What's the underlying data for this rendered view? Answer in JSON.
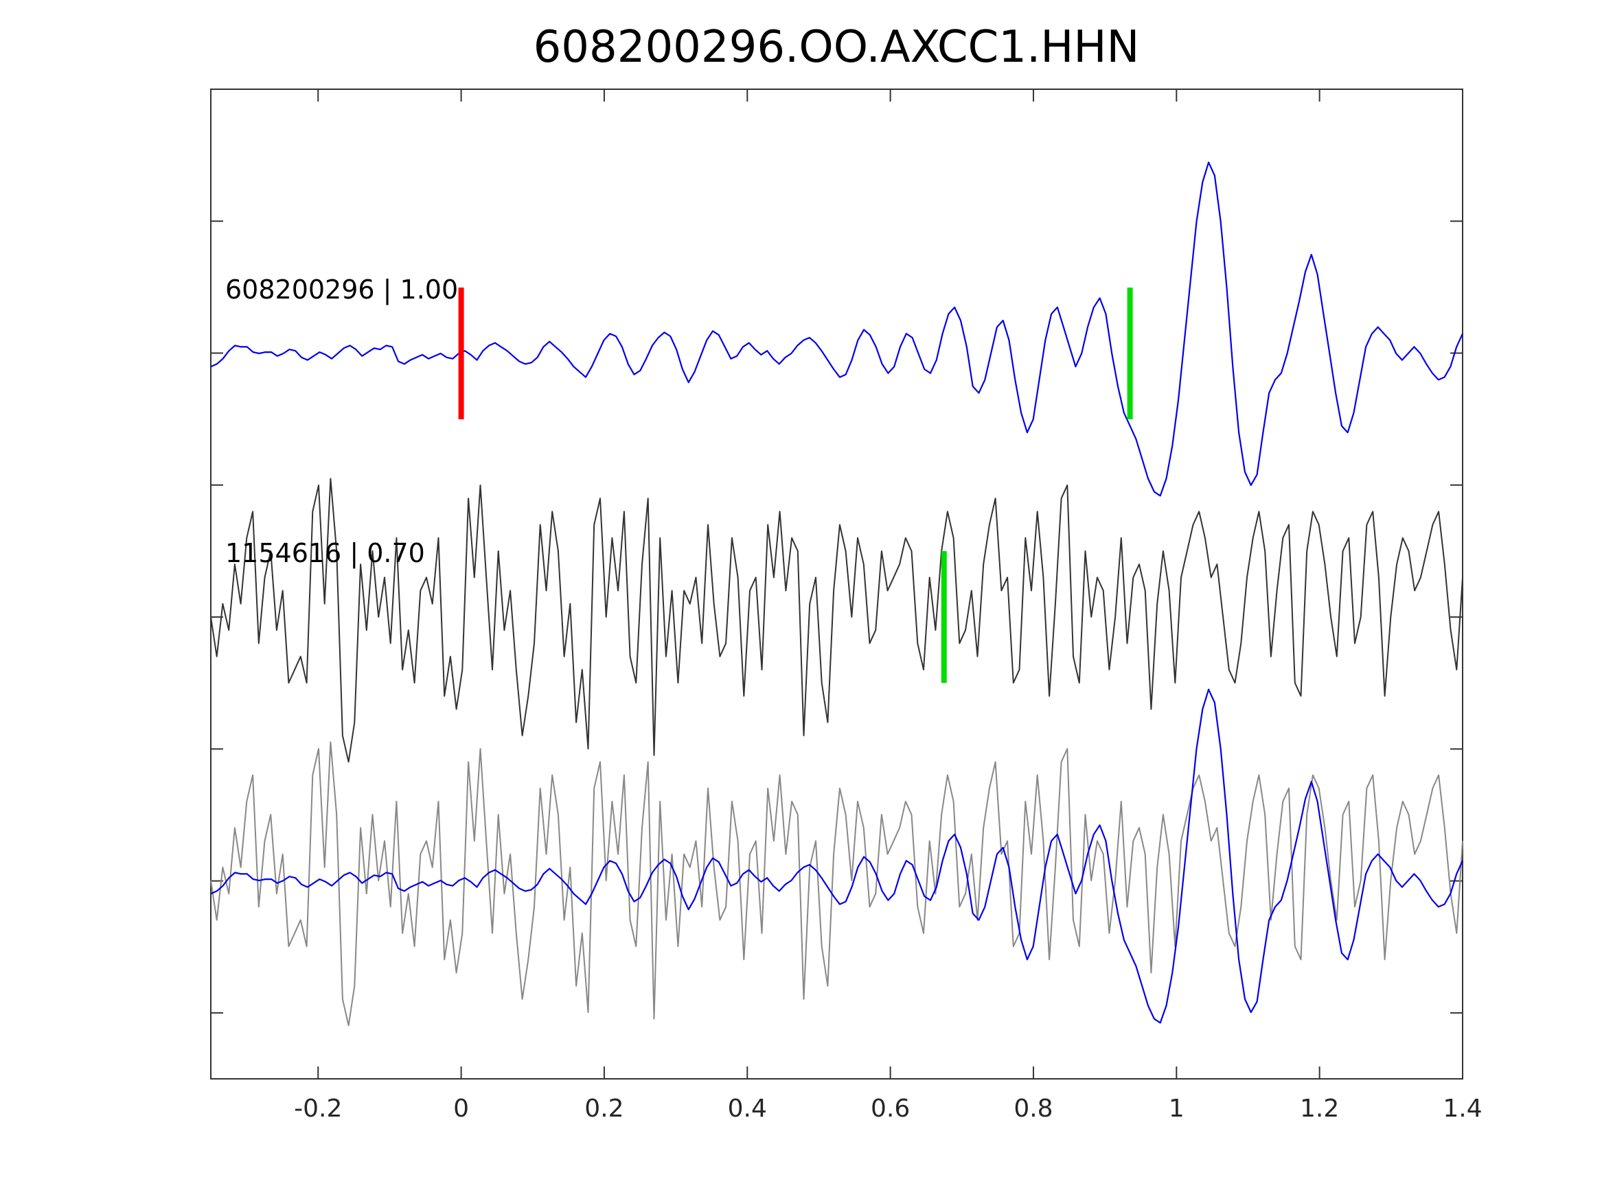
{
  "chart_data": {
    "type": "line",
    "title": "608200296.OO.AXCC1.HHN",
    "xlabel": "",
    "ylabel": "",
    "xlim": [
      -0.35,
      1.4
    ],
    "x_ticks": [
      -0.2,
      0,
      0.2,
      0.4,
      0.6,
      0.8,
      1,
      1.2,
      1.4
    ],
    "x_tick_labels": [
      "-0.2",
      "0",
      "0.2",
      "0.4",
      "0.6",
      "0.8",
      "1",
      "1.2",
      "1.4"
    ],
    "y_ticks_count": 7,
    "y_tick_labels_shown": false,
    "grid": false,
    "legend": "none",
    "traces": [
      {
        "label": "608200296 | 1.00",
        "color": "#0000ee",
        "offset": 2,
        "samples": [
          -0.1,
          -0.08,
          -0.04,
          0.02,
          0.06,
          0.05,
          0.05,
          0.01,
          0.0,
          0.01,
          0.01,
          -0.02,
          0.0,
          0.03,
          0.02,
          -0.03,
          -0.05,
          -0.02,
          0.01,
          -0.01,
          -0.04,
          0.0,
          0.04,
          0.06,
          0.03,
          -0.02,
          0.01,
          0.04,
          0.03,
          0.06,
          0.05,
          -0.06,
          -0.08,
          -0.05,
          -0.03,
          -0.01,
          -0.04,
          -0.02,
          0.0,
          -0.03,
          -0.04,
          0.0,
          0.02,
          -0.01,
          -0.05,
          0.02,
          0.06,
          0.08,
          0.05,
          0.02,
          -0.02,
          -0.06,
          -0.08,
          -0.07,
          -0.03,
          0.05,
          0.09,
          0.05,
          0.01,
          -0.04,
          -0.1,
          -0.14,
          -0.18,
          -0.1,
          0.0,
          0.1,
          0.15,
          0.13,
          0.05,
          -0.08,
          -0.16,
          -0.13,
          -0.04,
          0.06,
          0.12,
          0.16,
          0.13,
          0.03,
          -0.12,
          -0.22,
          -0.14,
          -0.02,
          0.1,
          0.17,
          0.14,
          0.05,
          -0.04,
          -0.02,
          0.05,
          0.08,
          0.03,
          -0.01,
          0.02,
          -0.04,
          -0.08,
          -0.03,
          0.0,
          0.06,
          0.1,
          0.12,
          0.08,
          0.02,
          -0.05,
          -0.12,
          -0.18,
          -0.16,
          -0.05,
          0.1,
          0.18,
          0.14,
          0.05,
          -0.08,
          -0.15,
          -0.1,
          0.05,
          0.15,
          0.12,
          0.0,
          -0.12,
          -0.15,
          -0.05,
          0.15,
          0.3,
          0.35,
          0.25,
          0.05,
          -0.25,
          -0.3,
          -0.2,
          0.0,
          0.2,
          0.25,
          0.1,
          -0.2,
          -0.45,
          -0.6,
          -0.5,
          -0.2,
          0.1,
          0.3,
          0.35,
          0.2,
          0.05,
          -0.1,
          0.0,
          0.2,
          0.35,
          0.42,
          0.3,
          0.0,
          -0.25,
          -0.45,
          -0.55,
          -0.65,
          -0.8,
          -0.95,
          -1.05,
          -1.08,
          -0.95,
          -0.7,
          -0.35,
          0.1,
          0.55,
          1.0,
          1.3,
          1.45,
          1.35,
          1.0,
          0.5,
          -0.1,
          -0.6,
          -0.9,
          -1.0,
          -0.92,
          -0.6,
          -0.3,
          -0.2,
          -0.15,
          0.0,
          0.2,
          0.4,
          0.62,
          0.75,
          0.6,
          0.3,
          0.0,
          -0.3,
          -0.55,
          -0.6,
          -0.45,
          -0.2,
          0.05,
          0.15,
          0.2,
          0.15,
          0.1,
          0.0,
          -0.05,
          0.0,
          0.05,
          0.0,
          -0.08,
          -0.15,
          -0.2,
          -0.18,
          -0.1,
          0.05,
          0.15
        ]
      },
      {
        "label": "1154616 | 0.70",
        "color": "#333333",
        "offset": 0,
        "samples": [
          0.0,
          -0.3,
          0.1,
          -0.1,
          0.4,
          0.1,
          0.6,
          0.8,
          -0.2,
          0.3,
          0.5,
          -0.1,
          0.2,
          -0.5,
          -0.4,
          -0.3,
          -0.5,
          0.8,
          1.0,
          0.1,
          1.05,
          0.5,
          -0.9,
          -1.1,
          -0.8,
          0.4,
          -0.1,
          0.5,
          0.0,
          0.3,
          -0.2,
          0.6,
          -0.4,
          -0.1,
          -0.5,
          0.2,
          0.3,
          0.1,
          0.6,
          -0.6,
          -0.3,
          -0.7,
          -0.4,
          0.9,
          0.3,
          1.0,
          0.3,
          -0.4,
          0.5,
          -0.1,
          0.2,
          -0.4,
          -0.9,
          -0.6,
          -0.2,
          0.7,
          0.2,
          0.8,
          0.5,
          -0.3,
          0.1,
          -0.8,
          -0.4,
          -1.0,
          0.7,
          0.9,
          0.0,
          0.6,
          0.2,
          0.8,
          -0.3,
          -0.5,
          0.4,
          0.9,
          -1.05,
          0.6,
          -0.3,
          0.2,
          -0.5,
          0.2,
          0.1,
          0.3,
          -0.2,
          0.7,
          0.1,
          -0.3,
          -0.2,
          0.6,
          0.3,
          -0.6,
          0.2,
          0.3,
          -0.4,
          0.7,
          0.3,
          0.8,
          0.2,
          0.6,
          0.5,
          -0.9,
          0.1,
          0.3,
          -0.5,
          -0.8,
          0.2,
          0.7,
          0.5,
          0.0,
          0.6,
          0.4,
          -0.2,
          -0.1,
          0.5,
          0.2,
          0.3,
          0.4,
          0.6,
          0.5,
          -0.2,
          -0.4,
          0.3,
          -0.1,
          0.5,
          0.8,
          0.6,
          -0.2,
          -0.1,
          0.2,
          -0.3,
          0.4,
          0.7,
          0.9,
          0.2,
          0.3,
          -0.5,
          -0.4,
          0.6,
          0.2,
          0.8,
          0.3,
          -0.6,
          0.1,
          0.9,
          1.0,
          -0.3,
          -0.5,
          0.5,
          0.0,
          0.3,
          0.2,
          -0.4,
          0.0,
          0.6,
          -0.2,
          0.3,
          0.4,
          0.2,
          -0.7,
          0.1,
          0.5,
          0.2,
          -0.5,
          0.3,
          0.5,
          0.7,
          0.8,
          0.6,
          0.3,
          0.4,
          0.0,
          -0.4,
          -0.5,
          -0.2,
          0.3,
          0.6,
          0.8,
          0.5,
          -0.3,
          0.2,
          0.6,
          0.7,
          -0.5,
          -0.6,
          0.5,
          0.8,
          0.7,
          0.4,
          0.0,
          -0.3,
          0.5,
          0.6,
          -0.2,
          0.0,
          0.7,
          0.8,
          0.3,
          -0.6,
          0.0,
          0.4,
          0.6,
          0.5,
          0.2,
          0.3,
          0.5,
          0.7,
          0.8,
          0.4,
          -0.1,
          -0.4,
          0.3
        ]
      },
      {
        "label": "",
        "color": "#888888",
        "offset": -2,
        "samples": [
          0.0,
          -0.3,
          0.1,
          -0.1,
          0.4,
          0.1,
          0.6,
          0.8,
          -0.2,
          0.3,
          0.5,
          -0.1,
          0.2,
          -0.5,
          -0.4,
          -0.3,
          -0.5,
          0.8,
          1.0,
          0.1,
          1.05,
          0.5,
          -0.9,
          -1.1,
          -0.8,
          0.4,
          -0.1,
          0.5,
          0.0,
          0.3,
          -0.2,
          0.6,
          -0.4,
          -0.1,
          -0.5,
          0.2,
          0.3,
          0.1,
          0.6,
          -0.6,
          -0.3,
          -0.7,
          -0.4,
          0.9,
          0.3,
          1.0,
          0.3,
          -0.4,
          0.5,
          -0.1,
          0.2,
          -0.4,
          -0.9,
          -0.6,
          -0.2,
          0.7,
          0.2,
          0.8,
          0.5,
          -0.3,
          0.1,
          -0.8,
          -0.4,
          -1.0,
          0.7,
          0.9,
          0.0,
          0.6,
          0.2,
          0.8,
          -0.3,
          -0.5,
          0.4,
          0.9,
          -1.05,
          0.6,
          -0.3,
          0.2,
          -0.5,
          0.2,
          0.1,
          0.3,
          -0.2,
          0.7,
          0.1,
          -0.3,
          -0.2,
          0.6,
          0.3,
          -0.6,
          0.2,
          0.3,
          -0.4,
          0.7,
          0.3,
          0.8,
          0.2,
          0.6,
          0.5,
          -0.9,
          0.1,
          0.3,
          -0.5,
          -0.8,
          0.2,
          0.7,
          0.5,
          0.0,
          0.6,
          0.4,
          -0.2,
          -0.1,
          0.5,
          0.2,
          0.3,
          0.4,
          0.6,
          0.5,
          -0.2,
          -0.4,
          0.3,
          -0.1,
          0.5,
          0.8,
          0.6,
          -0.2,
          -0.1,
          0.2,
          -0.3,
          0.4,
          0.7,
          0.9,
          0.2,
          0.3,
          -0.5,
          -0.4,
          0.6,
          0.2,
          0.8,
          0.3,
          -0.6,
          0.1,
          0.9,
          1.0,
          -0.3,
          -0.5,
          0.5,
          0.0,
          0.3,
          0.2,
          -0.4,
          0.0,
          0.6,
          -0.2,
          0.3,
          0.4,
          0.2,
          -0.7,
          0.1,
          0.5,
          0.2,
          -0.5,
          0.3,
          0.5,
          0.7,
          0.8,
          0.6,
          0.3,
          0.4,
          0.0,
          -0.4,
          -0.5,
          -0.2,
          0.3,
          0.6,
          0.8,
          0.5,
          -0.3,
          0.2,
          0.6,
          0.7,
          -0.5,
          -0.6,
          0.5,
          0.8,
          0.7,
          0.4,
          0.0,
          -0.3,
          0.5,
          0.6,
          -0.2,
          0.0,
          0.7,
          0.8,
          0.3,
          -0.6,
          0.0,
          0.4,
          0.6,
          0.5,
          0.2,
          0.3,
          0.5,
          0.7,
          0.8,
          0.4,
          -0.1,
          -0.4,
          0.3
        ]
      },
      {
        "label": "",
        "color": "#0000ee",
        "offset": -2,
        "samples": [
          -0.1,
          -0.08,
          -0.04,
          0.02,
          0.06,
          0.05,
          0.05,
          0.01,
          0.0,
          0.01,
          0.01,
          -0.02,
          0.0,
          0.03,
          0.02,
          -0.03,
          -0.05,
          -0.02,
          0.01,
          -0.01,
          -0.04,
          0.0,
          0.04,
          0.06,
          0.03,
          -0.02,
          0.01,
          0.04,
          0.03,
          0.06,
          0.05,
          -0.06,
          -0.08,
          -0.05,
          -0.03,
          -0.01,
          -0.04,
          -0.02,
          0.0,
          -0.03,
          -0.04,
          0.0,
          0.02,
          -0.01,
          -0.05,
          0.02,
          0.06,
          0.08,
          0.05,
          0.02,
          -0.02,
          -0.06,
          -0.08,
          -0.07,
          -0.03,
          0.05,
          0.09,
          0.05,
          0.01,
          -0.04,
          -0.1,
          -0.14,
          -0.18,
          -0.1,
          0.0,
          0.1,
          0.15,
          0.13,
          0.05,
          -0.08,
          -0.16,
          -0.13,
          -0.04,
          0.06,
          0.12,
          0.16,
          0.13,
          0.03,
          -0.12,
          -0.22,
          -0.14,
          -0.02,
          0.1,
          0.17,
          0.14,
          0.05,
          -0.04,
          -0.02,
          0.05,
          0.08,
          0.03,
          -0.01,
          0.02,
          -0.04,
          -0.08,
          -0.03,
          0.0,
          0.06,
          0.1,
          0.12,
          0.08,
          0.02,
          -0.05,
          -0.12,
          -0.18,
          -0.16,
          -0.05,
          0.1,
          0.18,
          0.14,
          0.05,
          -0.08,
          -0.15,
          -0.1,
          0.05,
          0.15,
          0.12,
          0.0,
          -0.12,
          -0.15,
          -0.05,
          0.15,
          0.3,
          0.35,
          0.25,
          0.05,
          -0.25,
          -0.3,
          -0.2,
          0.0,
          0.2,
          0.25,
          0.1,
          -0.2,
          -0.45,
          -0.6,
          -0.5,
          -0.2,
          0.1,
          0.3,
          0.35,
          0.2,
          0.05,
          -0.1,
          0.0,
          0.2,
          0.35,
          0.42,
          0.3,
          0.0,
          -0.25,
          -0.45,
          -0.55,
          -0.65,
          -0.8,
          -0.95,
          -1.05,
          -1.08,
          -0.95,
          -0.7,
          -0.35,
          0.1,
          0.55,
          1.0,
          1.3,
          1.45,
          1.35,
          1.0,
          0.5,
          -0.1,
          -0.6,
          -0.9,
          -1.0,
          -0.92,
          -0.6,
          -0.3,
          -0.2,
          -0.15,
          0.0,
          0.2,
          0.4,
          0.62,
          0.75,
          0.6,
          0.3,
          0.0,
          -0.3,
          -0.55,
          -0.6,
          -0.45,
          -0.2,
          0.05,
          0.15,
          0.2,
          0.15,
          0.1,
          0.0,
          -0.05,
          0.0,
          0.05,
          0.0,
          -0.08,
          -0.15,
          -0.2,
          -0.18,
          -0.1,
          0.05,
          0.15
        ]
      }
    ],
    "markers": [
      {
        "x": 0.0,
        "offset": 2,
        "color": "#ff0000"
      },
      {
        "x": 0.935,
        "offset": 2,
        "color": "#00dd00"
      },
      {
        "x": 0.675,
        "offset": 0,
        "color": "#00dd00"
      }
    ]
  }
}
